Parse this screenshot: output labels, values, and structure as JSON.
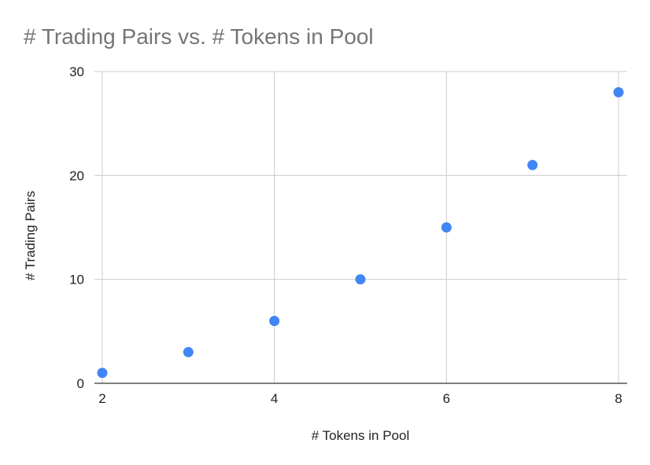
{
  "chart_data": {
    "type": "scatter",
    "title": "# Trading Pairs vs. # Tokens in Pool",
    "xlabel": "# Tokens in Pool",
    "ylabel": "# Trading Pairs",
    "xlim": [
      2,
      8
    ],
    "ylim": [
      0,
      30
    ],
    "x_ticks": [
      "2",
      "4",
      "6",
      "8"
    ],
    "y_ticks": [
      "0",
      "10",
      "20",
      "30"
    ],
    "grid": true,
    "legend": "none",
    "series": [
      {
        "color": "#4285f4",
        "points": [
          {
            "x": 2,
            "y": 1
          },
          {
            "x": 3,
            "y": 3
          },
          {
            "x": 4,
            "y": 6
          },
          {
            "x": 5,
            "y": 10
          },
          {
            "x": 6,
            "y": 15
          },
          {
            "x": 7,
            "y": 21
          },
          {
            "x": 8,
            "y": 28
          }
        ]
      }
    ]
  }
}
